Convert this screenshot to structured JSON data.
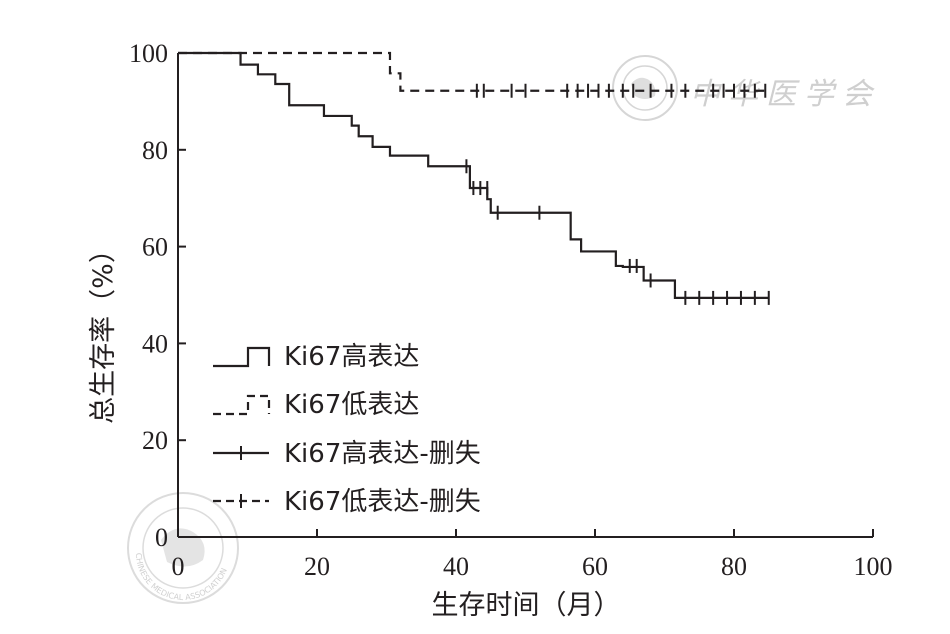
{
  "chart_data": {
    "type": "line",
    "xlabel": "生存时间（月）",
    "ylabel": "总生存率（%）",
    "xlim": [
      0,
      100
    ],
    "ylim": [
      0,
      100
    ],
    "x_ticks": [
      0,
      20,
      40,
      60,
      80,
      100
    ],
    "y_ticks": [
      0,
      20,
      40,
      60,
      80,
      100
    ],
    "grid": false,
    "legend_position": "bottom-left",
    "series": [
      {
        "name": "Ki67高表达",
        "line_style": "solid",
        "steps": [
          [
            0,
            100
          ],
          [
            9,
            97.6
          ],
          [
            11.5,
            95.6
          ],
          [
            14,
            93.6
          ],
          [
            16,
            89.2
          ],
          [
            21,
            87.0
          ],
          [
            25,
            85.0
          ],
          [
            26,
            82.8
          ],
          [
            28,
            80.6
          ],
          [
            30.5,
            78.8
          ],
          [
            36,
            76.6
          ],
          [
            42,
            72.1
          ],
          [
            44.5,
            69.8
          ],
          [
            45,
            67.0
          ],
          [
            56.5,
            61.5
          ],
          [
            58,
            59.0
          ],
          [
            63,
            56.0
          ],
          [
            64,
            55.8
          ],
          [
            67,
            53.0
          ],
          [
            71.5,
            49.4
          ],
          [
            85,
            49.4
          ]
        ]
      },
      {
        "name": "Ki67低表达",
        "line_style": "dashed",
        "steps": [
          [
            0,
            100
          ],
          [
            30.5,
            95.8
          ],
          [
            32,
            92.2
          ],
          [
            85,
            92.2
          ]
        ]
      },
      {
        "name": "Ki67高表达-删失",
        "marker": "+",
        "points": [
          [
            41.5,
            76.6
          ],
          [
            42.5,
            72.1
          ],
          [
            43.5,
            72.1
          ],
          [
            44.5,
            72.1
          ],
          [
            46,
            67.0
          ],
          [
            52,
            67.0
          ],
          [
            65,
            56.0
          ],
          [
            66,
            56.0
          ],
          [
            68,
            53.0
          ],
          [
            73,
            49.4
          ],
          [
            75,
            49.4
          ],
          [
            77,
            49.4
          ],
          [
            79,
            49.4
          ],
          [
            81,
            49.4
          ],
          [
            83,
            49.4
          ],
          [
            85,
            49.4
          ]
        ]
      },
      {
        "name": "Ki67低表达-删失",
        "marker": "+",
        "points": [
          [
            43,
            92.2
          ],
          [
            44,
            92.2
          ],
          [
            48,
            92.2
          ],
          [
            50,
            92.2
          ],
          [
            56,
            92.2
          ],
          [
            57.5,
            92.2
          ],
          [
            59,
            92.2
          ],
          [
            60.5,
            92.2
          ],
          [
            62,
            92.2
          ],
          [
            64,
            92.2
          ],
          [
            65.5,
            92.2
          ],
          [
            68,
            92.2
          ],
          [
            71,
            92.2
          ],
          [
            73,
            92.2
          ],
          [
            77,
            92.2
          ],
          [
            78.5,
            92.2
          ],
          [
            80,
            92.2
          ],
          [
            81.5,
            92.2
          ],
          [
            83,
            92.2
          ],
          [
            84.5,
            92.2
          ]
        ]
      }
    ]
  },
  "watermark": {
    "text": "中华医学会",
    "seal_text": "CHINESE MEDICAL ASSOCIATION"
  },
  "colors": {
    "ink": "#231f20",
    "axis_title": "#7a1f24",
    "watermark": "#cfcfcf"
  }
}
